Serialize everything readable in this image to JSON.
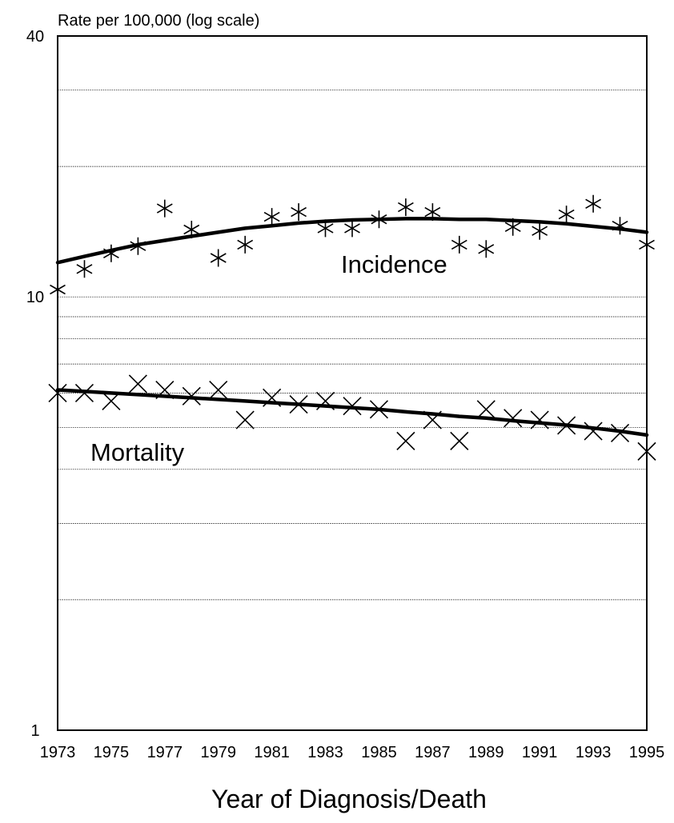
{
  "chart_data": {
    "type": "scatter",
    "xlabel": "Year of Diagnosis/Death",
    "ylabel": "Rate per 100,000 (log scale)",
    "yscale": "log",
    "ylim": [
      1,
      40
    ],
    "xlim": [
      1973,
      1995
    ],
    "ytick_labels": [
      "1",
      "10",
      "40"
    ],
    "ygrid": [
      2,
      3,
      4,
      5,
      6,
      7,
      8,
      9,
      10,
      20,
      30
    ],
    "xtick_labels": [
      "1973",
      "1975",
      "1977",
      "1979",
      "1981",
      "1983",
      "1985",
      "1987",
      "1989",
      "1991",
      "1993",
      "1995"
    ],
    "x": [
      1973,
      1974,
      1975,
      1976,
      1977,
      1978,
      1979,
      1980,
      1981,
      1982,
      1983,
      1984,
      1985,
      1986,
      1987,
      1988,
      1989,
      1990,
      1991,
      1992,
      1993,
      1994,
      1995
    ],
    "grid": "horizontal dotted",
    "series": [
      {
        "name": "Incidence",
        "marker": "asterisk",
        "values": [
          10.4,
          11.6,
          12.6,
          13.1,
          16.0,
          14.3,
          12.3,
          13.2,
          15.3,
          15.7,
          14.4,
          14.4,
          15.1,
          16.1,
          15.7,
          13.2,
          12.9,
          14.5,
          14.2,
          15.5,
          16.4,
          14.6,
          13.2
        ],
        "trend": [
          12.0,
          12.4,
          12.8,
          13.2,
          13.5,
          13.8,
          14.1,
          14.4,
          14.6,
          14.8,
          14.95,
          15.05,
          15.1,
          15.15,
          15.15,
          15.1,
          15.1,
          15.0,
          14.9,
          14.75,
          14.55,
          14.35,
          14.1
        ]
      },
      {
        "name": "Mortality",
        "marker": "x",
        "values": [
          6.0,
          6.0,
          5.75,
          6.3,
          6.1,
          5.9,
          6.1,
          5.2,
          5.85,
          5.65,
          5.75,
          5.6,
          5.5,
          4.65,
          5.2,
          4.65,
          5.5,
          5.25,
          5.2,
          5.05,
          4.9,
          4.85,
          4.4
        ],
        "trend": [
          6.1,
          6.05,
          6.0,
          5.95,
          5.9,
          5.85,
          5.8,
          5.75,
          5.7,
          5.65,
          5.6,
          5.55,
          5.5,
          5.43,
          5.37,
          5.3,
          5.25,
          5.18,
          5.12,
          5.06,
          4.98,
          4.9,
          4.8
        ]
      }
    ]
  }
}
